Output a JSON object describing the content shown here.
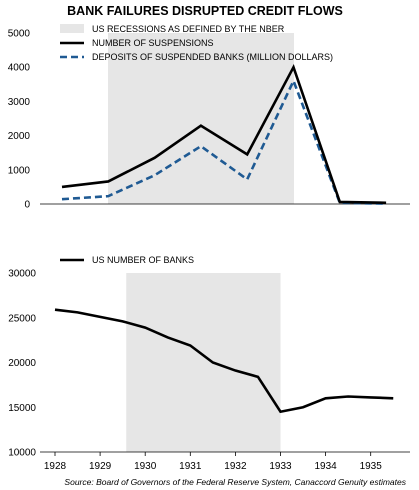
{
  "title": "BANK FAILURES DISRUPTED CREDIT FLOWS",
  "source": "Source: Board of Governors of the Federal Reserve System, Canaccord Genuity estimates",
  "colors": {
    "recession": "#e6e6e6",
    "suspensions": "#000000",
    "deposits": "#1f5a93",
    "banks": "#000000"
  },
  "chart_data": [
    {
      "type": "line",
      "ylim": [
        0,
        5000
      ],
      "yticks": [
        "0",
        "1000",
        "2000",
        "3000",
        "4000",
        "5000"
      ],
      "x": [
        1928,
        1929,
        1930,
        1931,
        1932,
        1933,
        1934,
        1935
      ],
      "recession": {
        "label": "US RECESSIONS AS DEFINED BY THE NBER",
        "start": 1929,
        "end": 1933
      },
      "series": [
        {
          "name": "NUMBER OF SUSPENSIONS",
          "style": "solid",
          "values": [
            500,
            660,
            1350,
            2290,
            1450,
            4000,
            60,
            35
          ]
        },
        {
          "name": "DEPOSITS OF SUSPENDED BANKS (MILLION DOLLARS)",
          "style": "dashed",
          "values": [
            140,
            230,
            840,
            1690,
            720,
            3600,
            35,
            10
          ]
        }
      ],
      "legend": "top-left"
    },
    {
      "type": "line",
      "ylim": [
        10000,
        30000
      ],
      "yticks": [
        "10000",
        "15000",
        "20000",
        "25000",
        "30000"
      ],
      "xlim": [
        1928,
        1935.75
      ],
      "xticks": [
        "1928",
        "1929",
        "1930",
        "1931",
        "1932",
        "1933",
        "1934",
        "1935"
      ],
      "recession": {
        "start": 1929.58,
        "end": 1933
      },
      "series": [
        {
          "name": "US NUMBER OF BANKS",
          "style": "solid",
          "x": [
            1928,
            1928.5,
            1929,
            1929.5,
            1930,
            1930.5,
            1931,
            1931.5,
            1932,
            1932.5,
            1933,
            1933.5,
            1934,
            1934.5,
            1935,
            1935.5
          ],
          "values": [
            25900,
            25600,
            25100,
            24600,
            23900,
            22800,
            21900,
            20000,
            19100,
            18400,
            14500,
            15000,
            16000,
            16200,
            16100,
            16000
          ]
        }
      ],
      "legend": "top-left"
    }
  ]
}
